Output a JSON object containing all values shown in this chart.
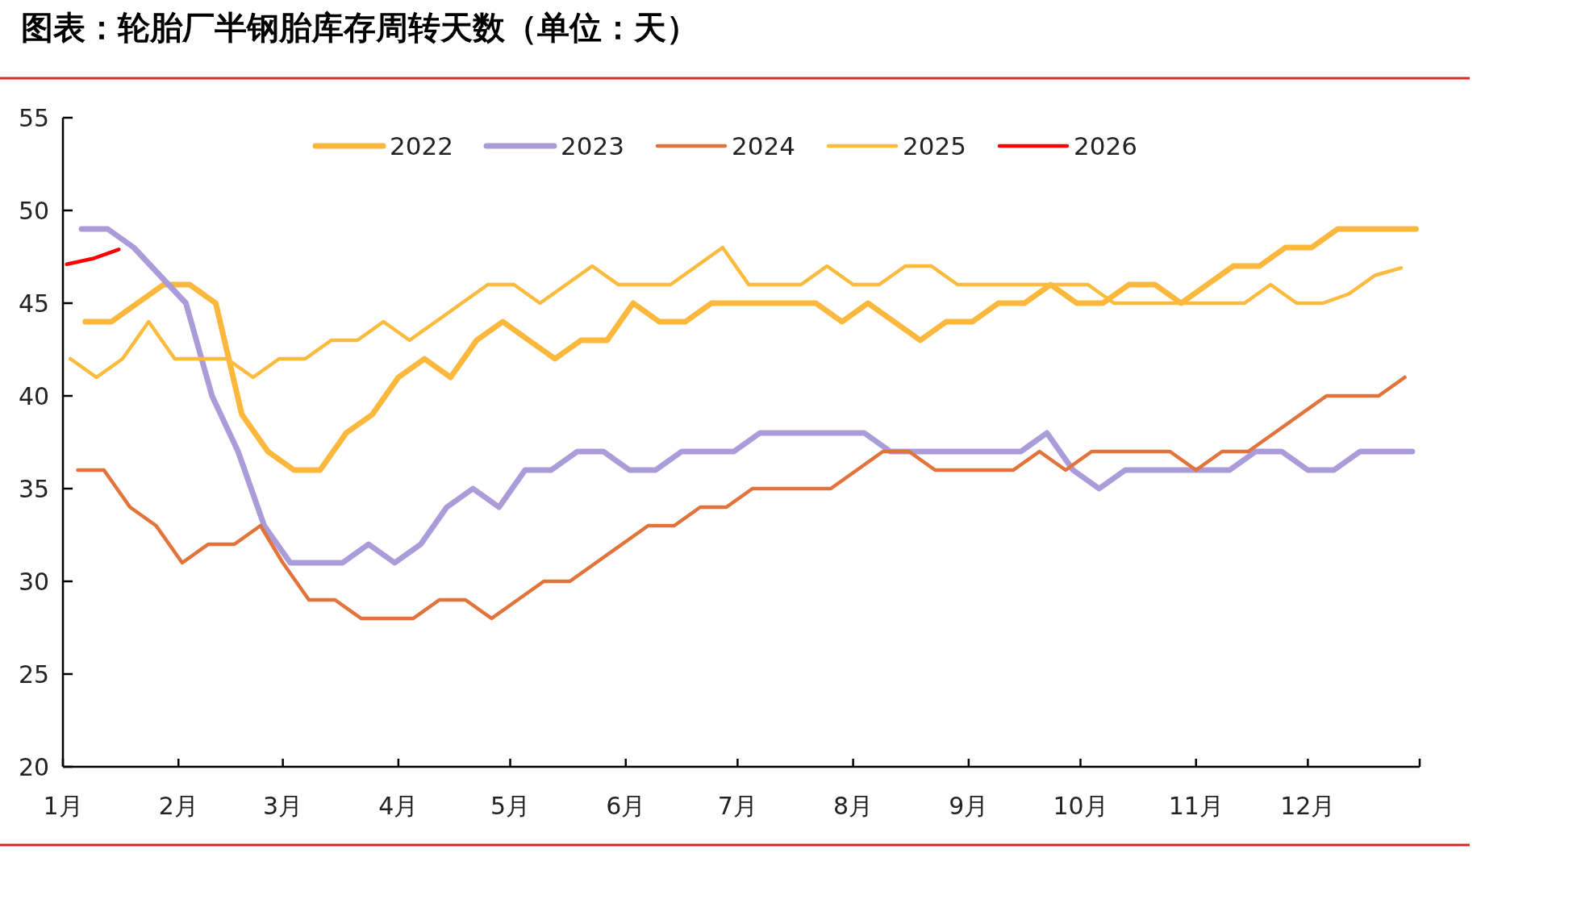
{
  "chart_data": {
    "type": "line",
    "title": "图表：轮胎厂半钢胎库存周转天数（单位：天）",
    "xlim": [
      "--01-01",
      "--12-31"
    ],
    "xticks": [
      {
        "value": "--01-01",
        "label": "1月"
      },
      {
        "value": "--02-01",
        "label": "2月"
      },
      {
        "value": "--03-01",
        "label": "3月"
      },
      {
        "value": "--04-01",
        "label": "4月"
      },
      {
        "value": "--05-01",
        "label": "5月"
      },
      {
        "value": "--06-01",
        "label": "6月"
      },
      {
        "value": "--07-01",
        "label": "7月"
      },
      {
        "value": "--08-01",
        "label": "8月"
      },
      {
        "value": "--09-01",
        "label": "9月"
      },
      {
        "value": "--10-01",
        "label": "10月"
      },
      {
        "value": "--11-01",
        "label": "11月"
      },
      {
        "value": "--12-01",
        "label": "12月"
      },
      {
        "value": "--12-31",
        "label": null
      }
    ],
    "ylim": [
      20,
      55
    ],
    "yticks": [
      20,
      25,
      30,
      35,
      40,
      45,
      50,
      55
    ],
    "legend": "top",
    "series": [
      {
        "name": "2022",
        "color": "#fbb83c",
        "x": [
          "--01-07",
          "--01-14",
          "--01-21",
          "--01-28",
          "--02-04",
          "--02-11",
          "--02-18",
          "--02-25",
          "--03-04",
          "--03-11",
          "--03-18",
          "--03-25",
          "--04-01",
          "--04-08",
          "--04-15",
          "--04-22",
          "--04-29",
          "--05-06",
          "--05-13",
          "--05-20",
          "--05-27",
          "--06-03",
          "--06-10",
          "--06-17",
          "--06-24",
          "--07-01",
          "--07-08",
          "--07-15",
          "--07-22",
          "--07-29",
          "--08-05",
          "--08-12",
          "--08-19",
          "--08-26",
          "--09-02",
          "--09-09",
          "--09-16",
          "--09-23",
          "--09-30",
          "--10-07",
          "--10-14",
          "--10-21",
          "--10-28",
          "--11-04",
          "--11-11",
          "--11-18",
          "--11-25",
          "--12-02",
          "--12-09",
          "--12-16",
          "--12-23",
          "--12-30"
        ],
        "values": [
          44,
          44,
          45,
          46,
          46,
          45,
          39,
          37,
          36,
          36,
          38,
          39,
          41,
          42,
          41,
          43,
          44,
          43,
          42,
          43,
          43,
          45,
          44,
          44,
          45,
          45,
          45,
          45,
          45,
          44,
          45,
          44,
          43,
          44,
          44,
          45,
          45,
          46,
          45,
          45,
          46,
          46,
          45,
          46,
          47,
          47,
          48,
          48,
          49,
          49,
          49,
          49
        ]
      },
      {
        "name": "2023",
        "color": "#a99cd8",
        "x": [
          "--01-06",
          "--01-13",
          "--01-20",
          "--01-27",
          "--02-03",
          "--02-10",
          "--02-17",
          "--02-24",
          "--03-03",
          "--03-10",
          "--03-17",
          "--03-24",
          "--03-31",
          "--04-07",
          "--04-14",
          "--04-21",
          "--04-28",
          "--05-05",
          "--05-12",
          "--05-19",
          "--05-26",
          "--06-02",
          "--06-09",
          "--06-16",
          "--06-23",
          "--06-30",
          "--07-07",
          "--07-14",
          "--07-21",
          "--07-28",
          "--08-04",
          "--08-11",
          "--08-18",
          "--08-25",
          "--09-01",
          "--09-08",
          "--09-15",
          "--09-22",
          "--09-29",
          "--10-06",
          "--10-13",
          "--10-20",
          "--10-27",
          "--11-03",
          "--11-10",
          "--11-17",
          "--11-24",
          "--12-01",
          "--12-08",
          "--12-15",
          "--12-22",
          "--12-29"
        ],
        "values": [
          49,
          49,
          48,
          46.5,
          45,
          40,
          37,
          33,
          31,
          31,
          31,
          32,
          31,
          32,
          34,
          35,
          34,
          36,
          36,
          37,
          37,
          36,
          36,
          37,
          37,
          37,
          38,
          38,
          38,
          38,
          38,
          37,
          37,
          37,
          37,
          37,
          37,
          38,
          36,
          35,
          36,
          36,
          36,
          36,
          36,
          37,
          37,
          36,
          36,
          37,
          37,
          37
        ]
      },
      {
        "name": "2024",
        "color": "#e2733a",
        "x": [
          "--01-05",
          "--01-12",
          "--01-19",
          "--01-26",
          "--02-02",
          "--02-09",
          "--02-16",
          "--02-23",
          "--03-01",
          "--03-08",
          "--03-15",
          "--03-22",
          "--03-29",
          "--04-05",
          "--04-12",
          "--04-19",
          "--04-26",
          "--05-03",
          "--05-10",
          "--05-17",
          "--05-24",
          "--05-31",
          "--06-07",
          "--06-14",
          "--06-21",
          "--06-28",
          "--07-05",
          "--07-12",
          "--07-19",
          "--07-26",
          "--08-02",
          "--08-09",
          "--08-16",
          "--08-23",
          "--08-30",
          "--09-06",
          "--09-13",
          "--09-20",
          "--09-27",
          "--10-04",
          "--10-11",
          "--10-18",
          "--10-25",
          "--11-01",
          "--11-08",
          "--11-15",
          "--11-22",
          "--11-29",
          "--12-06",
          "--12-13",
          "--12-20",
          "--12-27"
        ],
        "values": [
          36,
          36,
          34,
          33,
          31,
          32,
          32,
          33,
          31,
          29,
          29,
          28,
          28,
          28,
          29,
          29,
          28,
          29,
          30,
          30,
          31,
          32,
          33,
          33,
          34,
          34,
          35,
          35,
          35,
          35,
          36,
          37,
          37,
          36,
          36,
          36,
          36,
          37,
          36,
          37,
          37,
          37,
          37,
          36,
          37,
          37,
          38,
          39,
          40,
          40,
          40,
          41
        ]
      },
      {
        "name": "2025",
        "color": "#fdbb3e",
        "x": [
          "--01-03",
          "--01-10",
          "--01-17",
          "--01-24",
          "--01-31",
          "--02-07",
          "--02-14",
          "--02-21",
          "--02-28",
          "--03-07",
          "--03-14",
          "--03-21",
          "--03-28",
          "--04-04",
          "--04-11",
          "--04-18",
          "--04-25",
          "--05-02",
          "--05-09",
          "--05-16",
          "--05-23",
          "--05-30",
          "--06-06",
          "--06-13",
          "--06-20",
          "--06-27",
          "--07-04",
          "--07-11",
          "--07-18",
          "--07-25",
          "--08-01",
          "--08-08",
          "--08-15",
          "--08-22",
          "--08-29",
          "--09-05",
          "--09-12",
          "--09-19",
          "--09-26",
          "--10-03",
          "--10-10",
          "--10-17",
          "--10-24",
          "--10-31",
          "--11-07",
          "--11-14",
          "--11-21",
          "--11-28",
          "--12-05",
          "--12-12",
          "--12-19",
          "--12-26"
        ],
        "values": [
          42,
          41,
          42,
          44,
          42,
          42,
          42,
          41,
          42,
          42,
          43,
          43,
          44,
          43,
          44,
          45,
          46,
          46,
          45,
          46,
          47,
          46,
          46,
          46,
          47,
          48,
          46,
          46,
          46,
          47,
          46,
          46,
          47,
          47,
          46,
          46,
          46,
          46,
          46,
          46,
          45,
          45,
          45,
          45,
          45,
          45,
          46,
          45,
          45,
          45.5,
          46.5,
          46.9
        ]
      },
      {
        "name": "2026",
        "color": "#ff0000",
        "x": [
          "--01-02",
          "--01-09",
          "--01-16"
        ],
        "values": [
          47.1,
          47.4,
          47.9
        ]
      }
    ]
  }
}
